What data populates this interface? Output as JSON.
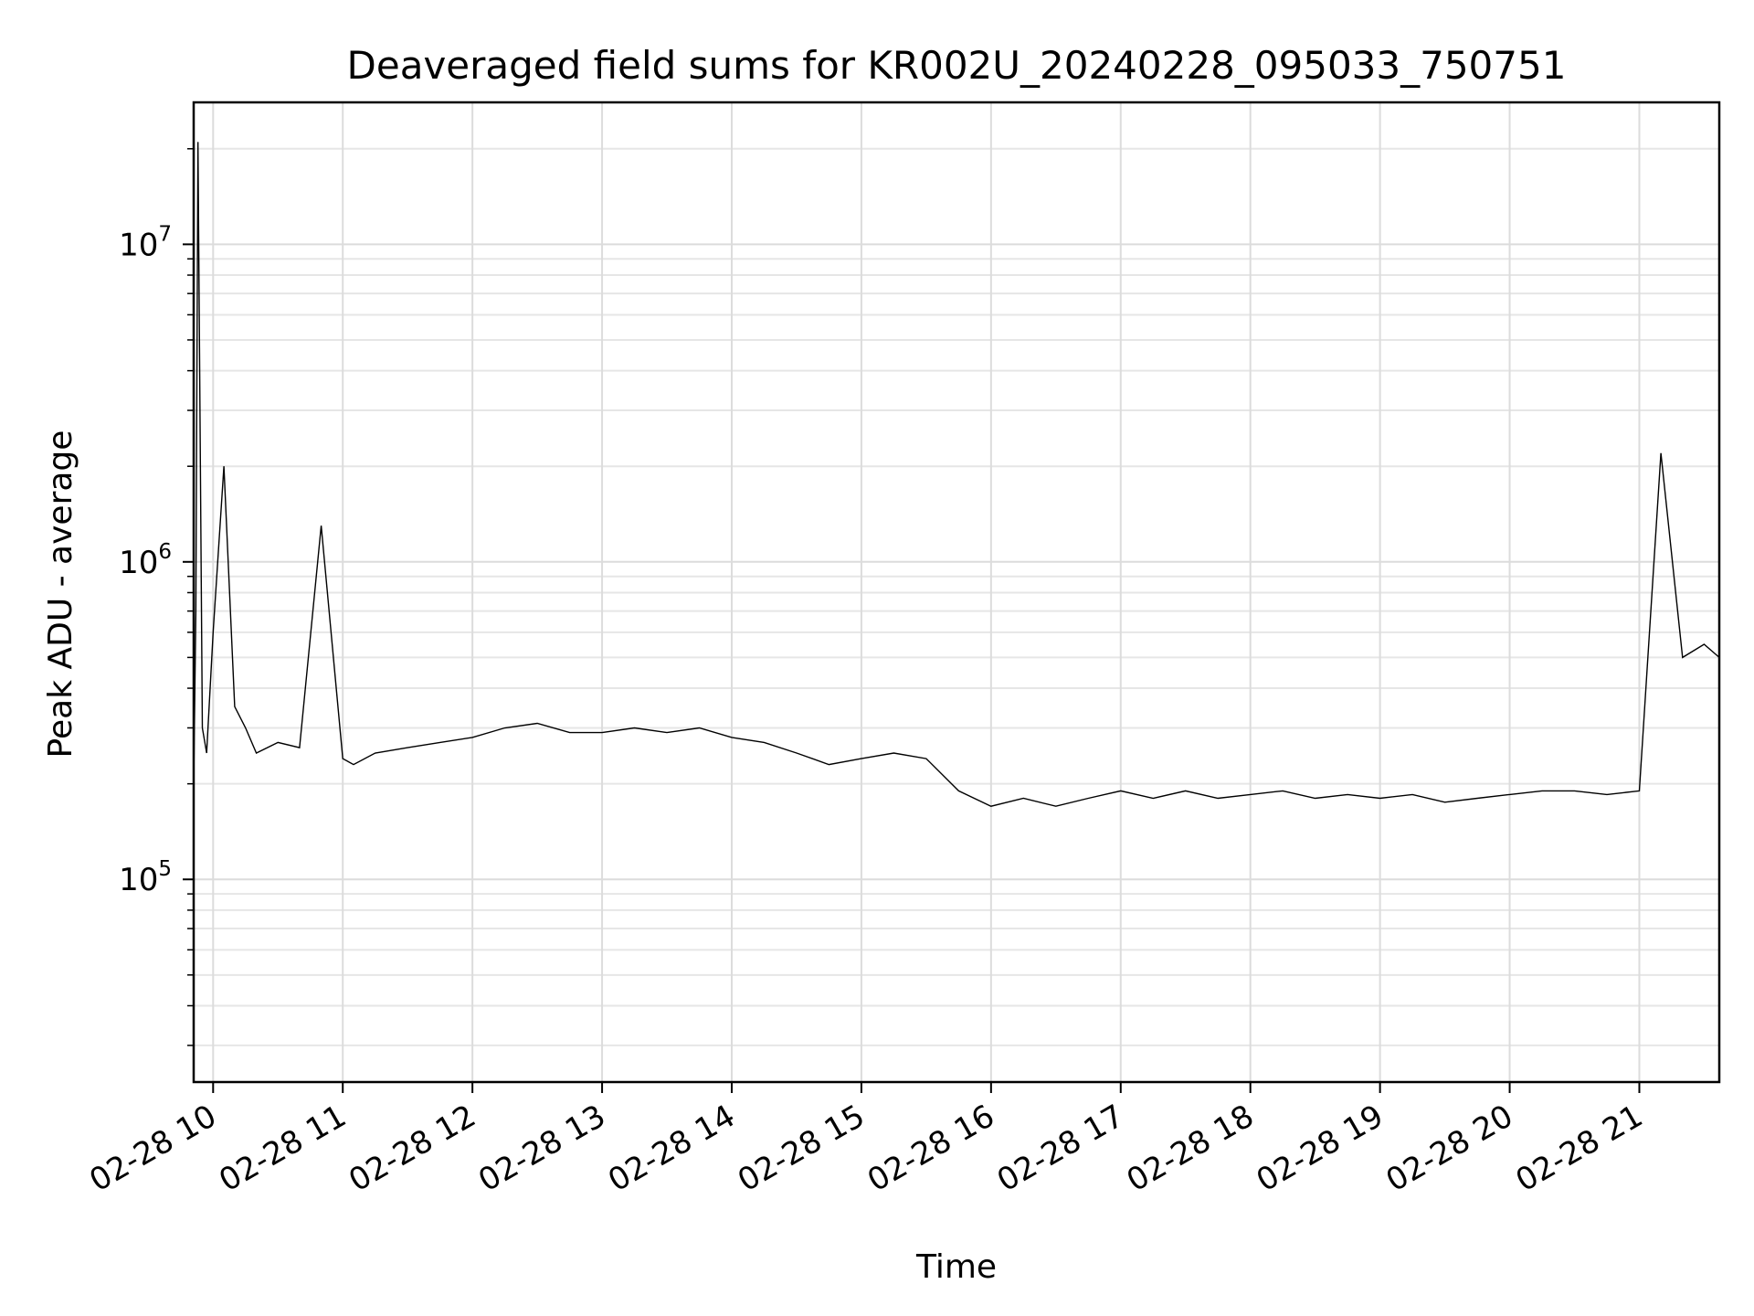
{
  "chart_data": {
    "type": "line",
    "title": "Deaveraged field sums for KR002U_20240228_095033_750751",
    "xlabel": "Time",
    "ylabel": "Peak ADU - average",
    "yscale": "log",
    "ylim": [
      23000,
      28000000
    ],
    "xlim": [
      "2024-02-28 09:51",
      "2024-02-28 21:37"
    ],
    "x_ticks": [
      "02-28 10",
      "02-28 11",
      "02-28 12",
      "02-28 13",
      "02-28 14",
      "02-28 15",
      "02-28 16",
      "02-28 17",
      "02-28 18",
      "02-28 19",
      "02-28 20",
      "02-28 21"
    ],
    "y_ticks": [
      {
        "value": 100000,
        "base": "10",
        "exp": "5"
      },
      {
        "value": 1000000,
        "base": "10",
        "exp": "6"
      },
      {
        "value": 10000000,
        "base": "10",
        "exp": "7"
      }
    ],
    "grid": true,
    "legend": "none",
    "line_color": "#000000",
    "series": [
      {
        "x": [
          "2024-02-28 09:51",
          "2024-02-28 09:52",
          "2024-02-28 09:53",
          "2024-02-28 09:55",
          "2024-02-28 09:57",
          "2024-02-28 10:00",
          "2024-02-28 10:05",
          "2024-02-28 10:10",
          "2024-02-28 10:15",
          "2024-02-28 10:20",
          "2024-02-28 10:30",
          "2024-02-28 10:40",
          "2024-02-28 10:50",
          "2024-02-28 11:00",
          "2024-02-28 11:05",
          "2024-02-28 11:15",
          "2024-02-28 11:30",
          "2024-02-28 11:45",
          "2024-02-28 12:00",
          "2024-02-28 12:15",
          "2024-02-28 12:30",
          "2024-02-28 12:45",
          "2024-02-28 13:00",
          "2024-02-28 13:15",
          "2024-02-28 13:30",
          "2024-02-28 13:45",
          "2024-02-28 14:00",
          "2024-02-28 14:15",
          "2024-02-28 14:30",
          "2024-02-28 14:45",
          "2024-02-28 15:00",
          "2024-02-28 15:15",
          "2024-02-28 15:30",
          "2024-02-28 15:45",
          "2024-02-28 16:00",
          "2024-02-28 16:15",
          "2024-02-28 16:30",
          "2024-02-28 16:45",
          "2024-02-28 17:00",
          "2024-02-28 17:15",
          "2024-02-28 17:30",
          "2024-02-28 17:45",
          "2024-02-28 18:00",
          "2024-02-28 18:15",
          "2024-02-28 18:30",
          "2024-02-28 18:45",
          "2024-02-28 19:00",
          "2024-02-28 19:15",
          "2024-02-28 19:30",
          "2024-02-28 19:45",
          "2024-02-28 20:00",
          "2024-02-28 20:15",
          "2024-02-28 20:30",
          "2024-02-28 20:45",
          "2024-02-28 21:00",
          "2024-02-28 21:10",
          "2024-02-28 21:20",
          "2024-02-28 21:30",
          "2024-02-28 21:37"
        ],
        "values": [
          200000,
          700000,
          21000000,
          300000,
          250000,
          600000,
          2000000,
          350000,
          300000,
          250000,
          270000,
          260000,
          1300000,
          240000,
          230000,
          250000,
          260000,
          270000,
          280000,
          300000,
          310000,
          290000,
          290000,
          300000,
          290000,
          300000,
          280000,
          270000,
          250000,
          230000,
          240000,
          250000,
          240000,
          190000,
          170000,
          180000,
          170000,
          180000,
          190000,
          180000,
          190000,
          180000,
          185000,
          190000,
          180000,
          185000,
          180000,
          185000,
          175000,
          180000,
          185000,
          190000,
          190000,
          185000,
          190000,
          2200000,
          500000,
          550000,
          500000
        ]
      }
    ]
  }
}
